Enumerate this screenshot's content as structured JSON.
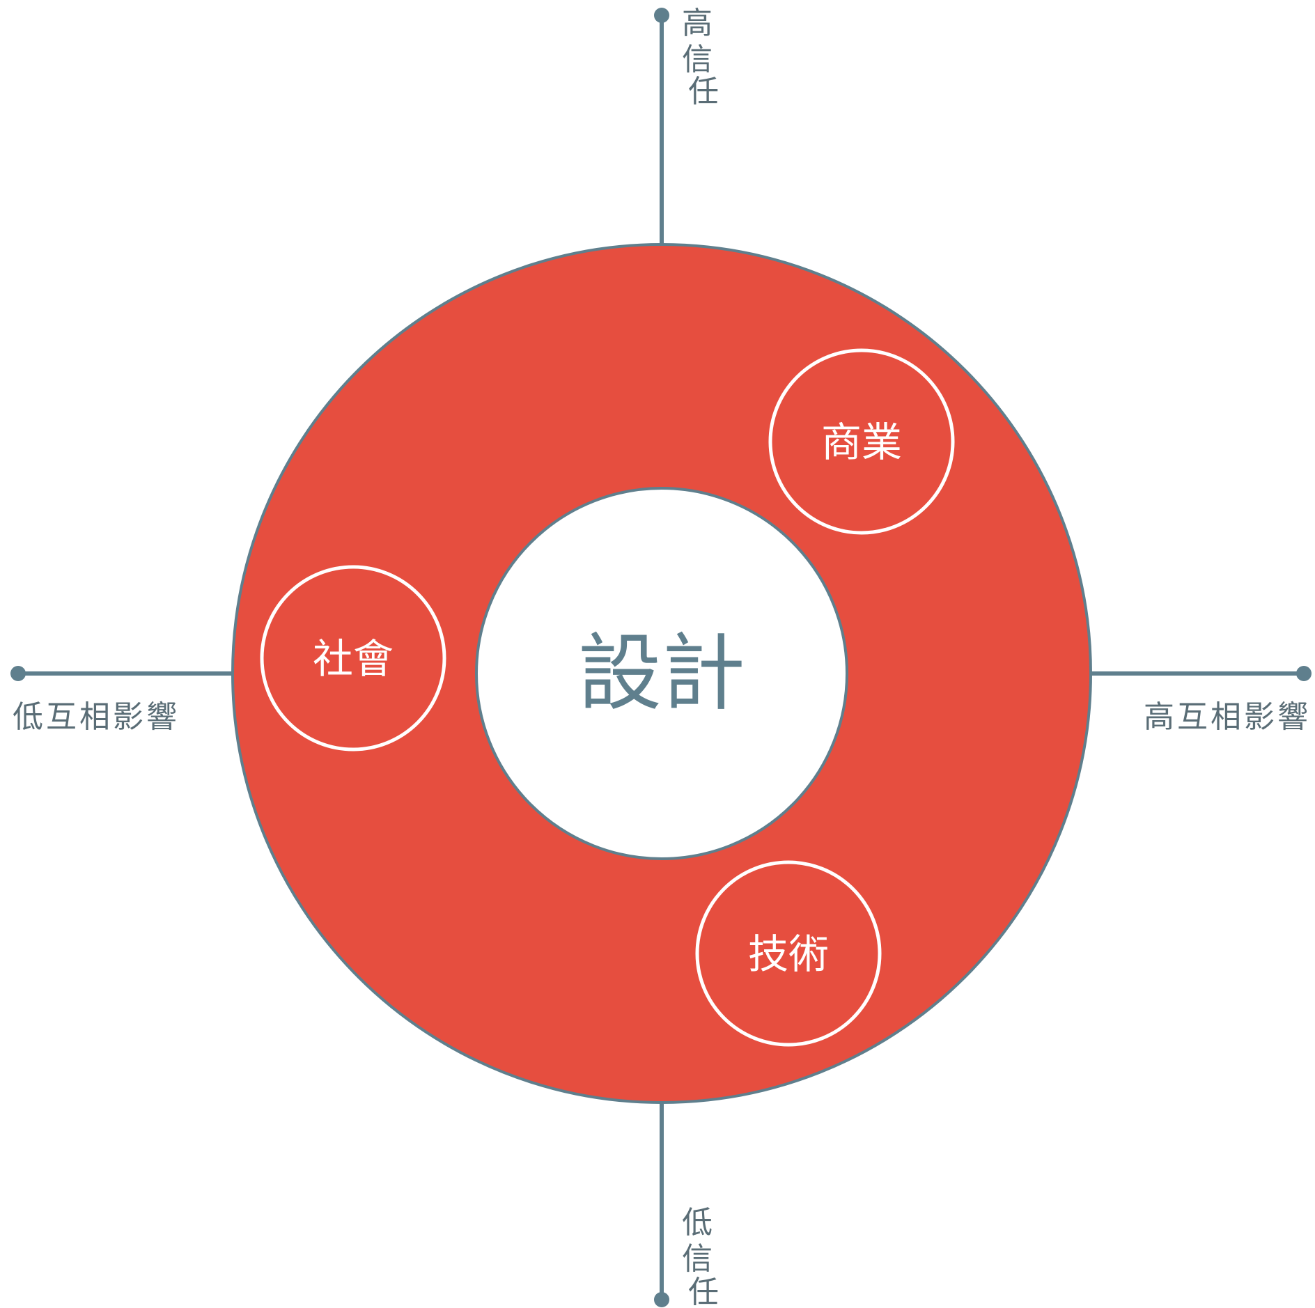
{
  "diagram": {
    "center": {
      "label": "設計"
    },
    "nodes": [
      {
        "id": "business",
        "label": "商業"
      },
      {
        "id": "society",
        "label": "社會"
      },
      {
        "id": "technology",
        "label": "技術"
      }
    ],
    "axes": {
      "top": {
        "label": [
          "高",
          "信",
          "任"
        ]
      },
      "bottom": {
        "label": [
          "低",
          "信",
          "任"
        ]
      },
      "left": {
        "label": "低互相影響"
      },
      "right": {
        "label": "高互相影響"
      }
    },
    "colors": {
      "ring": "#e64e3f",
      "axis": "#5f7f8d",
      "center_text": "#5f7f8d",
      "bubble_stroke": "#ffffff"
    }
  }
}
